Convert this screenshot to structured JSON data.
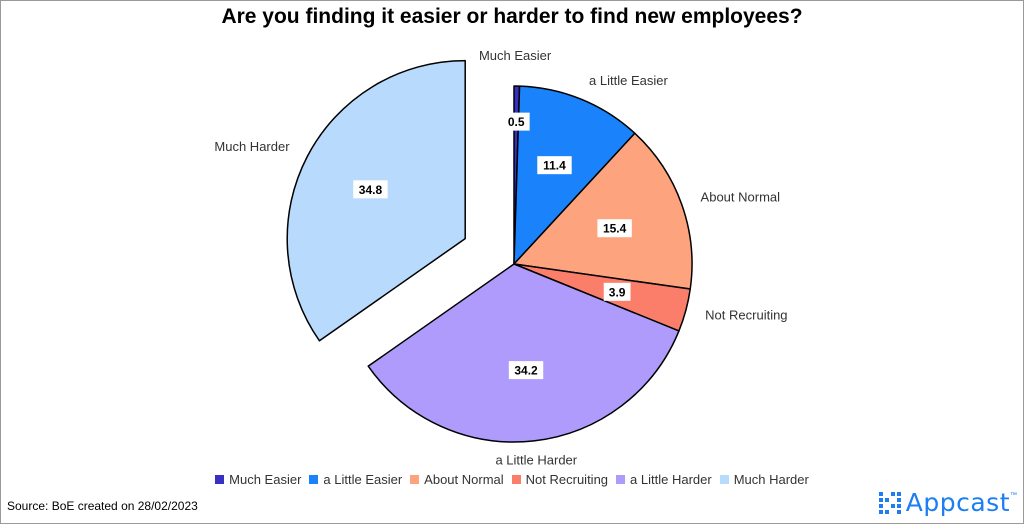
{
  "title": "Are you finding it easier or harder to find new employees?",
  "source": "Source: BoE created on 28/02/2023",
  "brand": {
    "name": "Appcast",
    "trademark": "™",
    "color": "#1c7ef2"
  },
  "chart_data": {
    "type": "pie",
    "title": "Are you finding it easier or harder to find new employees?",
    "legend_position": "bottom",
    "exploded": [
      "Much Harder"
    ],
    "slices": [
      {
        "label": "Much Easier",
        "value": 0.5,
        "value_label": "0.5",
        "color": "#3730c3"
      },
      {
        "label": "a Little Easier",
        "value": 11.4,
        "value_label": "11.4",
        "color": "#1a82fb"
      },
      {
        "label": "About Normal",
        "value": 15.4,
        "value_label": "15.4",
        "color": "#fda47e"
      },
      {
        "label": "Not Recruiting",
        "value": 3.9,
        "value_label": "3.9",
        "color": "#fb7e6b"
      },
      {
        "label": "a Little Harder",
        "value": 34.2,
        "value_label": "34.2",
        "color": "#ae9bfb"
      },
      {
        "label": "Much Harder",
        "value": 34.8,
        "value_label": "34.8",
        "color": "#b8dafd"
      }
    ]
  }
}
